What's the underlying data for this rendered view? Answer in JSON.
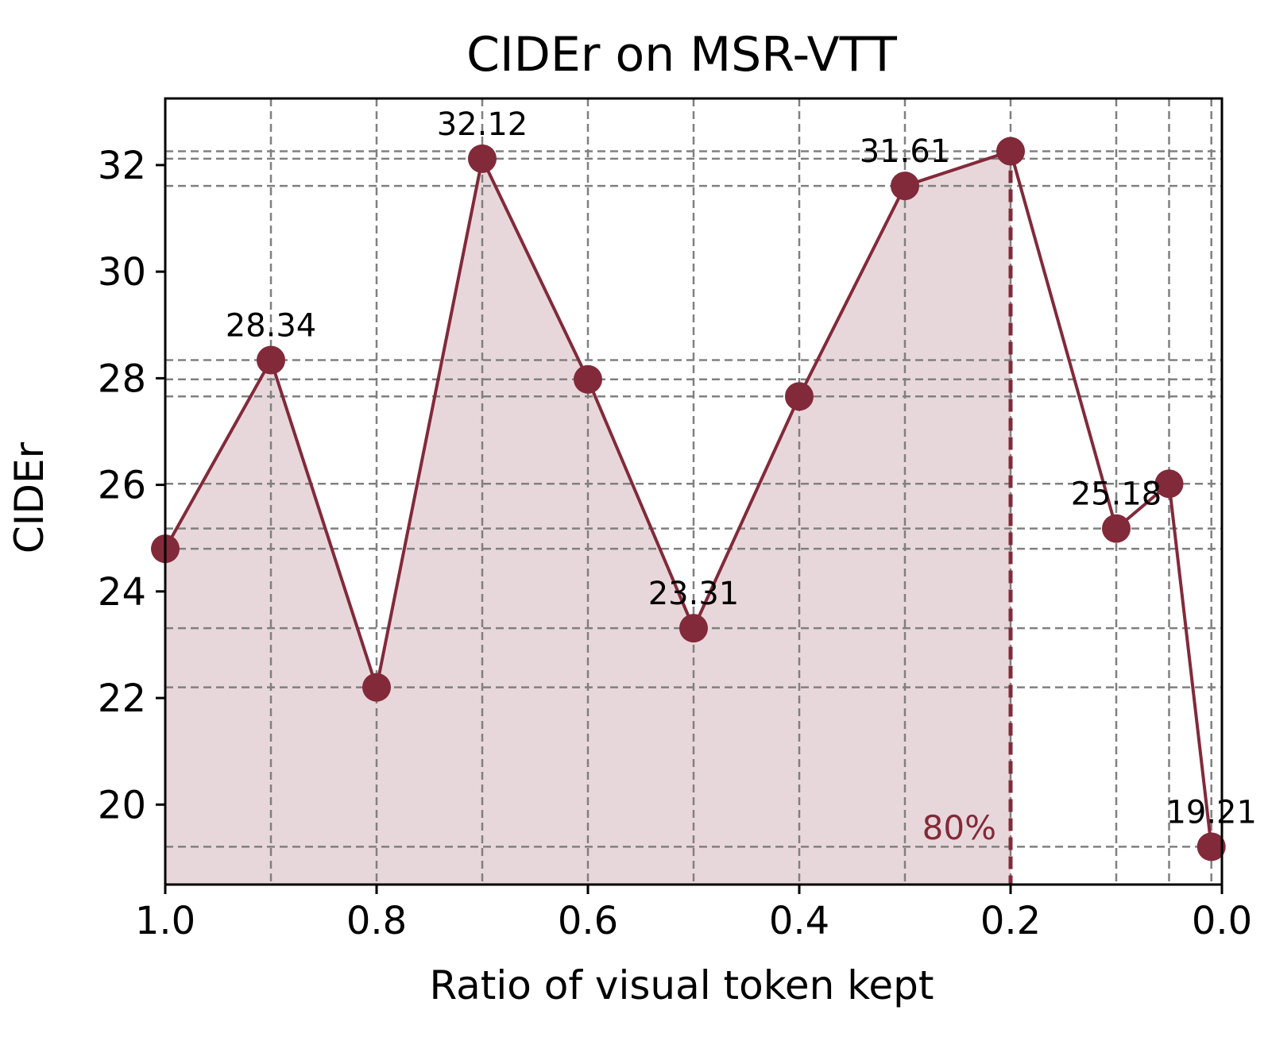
{
  "chart_data": {
    "type": "line",
    "title": "CIDEr on MSR-VTT",
    "xlabel": "Ratio of visual token kept",
    "ylabel": "CIDEr",
    "xlim": [
      1.0,
      0.0
    ],
    "ylim": [
      18.5,
      33.25
    ],
    "x_inverted": true,
    "grid": true,
    "xticks": [
      1.0,
      0.8,
      0.6,
      0.4,
      0.2,
      0.0
    ],
    "xtick_labels": [
      "1.0",
      "0.8",
      "0.6",
      "0.4",
      "0.2",
      "0.0"
    ],
    "yticks": [
      20,
      22,
      24,
      26,
      28,
      30,
      32
    ],
    "ytick_labels": [
      "20",
      "22",
      "24",
      "26",
      "28",
      "30",
      "32"
    ],
    "series": [
      {
        "x": [
          1.0,
          0.9,
          0.8,
          0.7,
          0.6,
          0.5,
          0.4,
          0.3,
          0.2,
          0.1,
          0.05,
          0.01
        ],
        "y": [
          24.8,
          28.34,
          22.2,
          32.12,
          27.98,
          23.31,
          27.66,
          31.61,
          32.26,
          25.18,
          26.02,
          19.21
        ]
      }
    ],
    "data_labels": [
      {
        "x": 0.9,
        "y": 28.34,
        "text": "28.34"
      },
      {
        "x": 0.7,
        "y": 32.12,
        "text": "32.12"
      },
      {
        "x": 0.5,
        "y": 23.31,
        "text": "23.31"
      },
      {
        "x": 0.3,
        "y": 31.61,
        "text": "31.61"
      },
      {
        "x": 0.1,
        "y": 25.18,
        "text": "25.18"
      },
      {
        "x": 0.01,
        "y": 19.21,
        "text": "19.21"
      }
    ],
    "vline": {
      "x": 0.2,
      "label": "80%"
    },
    "fill_to": 0.2,
    "colors": {
      "line": "#822a3a",
      "fill": "#e8d7da",
      "grid": "#808080",
      "axis": "#000000"
    }
  }
}
